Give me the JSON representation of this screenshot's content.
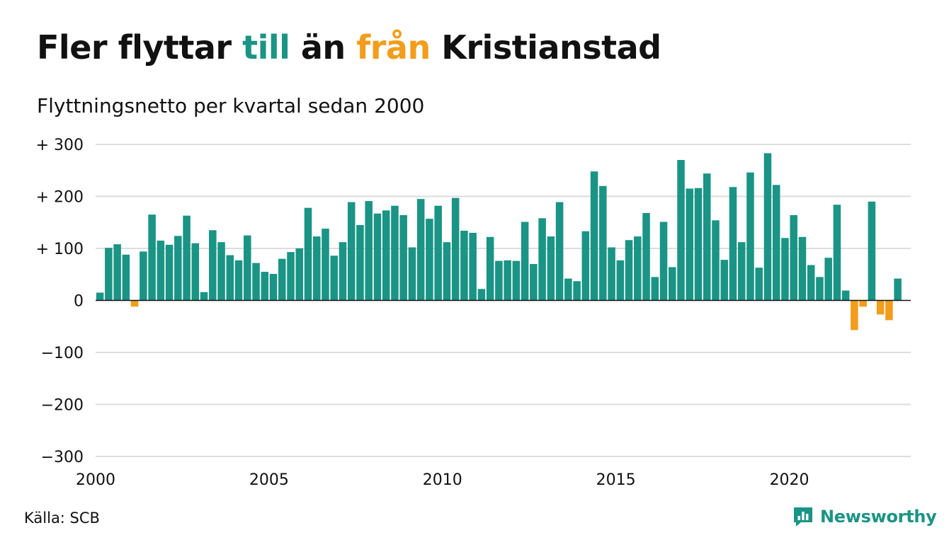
{
  "title": {
    "part1": "Fler flyttar ",
    "till": "till",
    "part2": " än ",
    "fran": "från",
    "part3": " Kristianstad"
  },
  "subtitle": "Flyttningsnetto per kvartal sedan 2000",
  "source": "Källa: SCB",
  "brand": {
    "name": "Newsworthy",
    "icon": "newsworthy-logo-icon"
  },
  "colors": {
    "positive": "#1a9485",
    "negative": "#f29d1b",
    "grid": "#dddddd",
    "zero_line": "#111111"
  },
  "chart_data": {
    "type": "bar",
    "title": "Fler flyttar till än från Kristianstad",
    "subtitle": "Flyttningsnetto per kvartal sedan 2000",
    "xlabel": "",
    "ylabel": "",
    "x_start": "2000 Q1",
    "x_unit": "quarter",
    "xlim": [
      2000,
      2023.5
    ],
    "ylim": [
      -300,
      300
    ],
    "yticks": [
      300,
      200,
      100,
      0,
      -100,
      -200,
      -300
    ],
    "ytick_labels": [
      "+ 300",
      "+ 200",
      "+ 100",
      "0",
      "−100",
      "−200",
      "−300"
    ],
    "xticks": [
      2000,
      2005,
      2010,
      2015,
      2020
    ],
    "xtick_labels": [
      "2000",
      "2005",
      "2010",
      "2015",
      "2020"
    ],
    "grid": "horizontal",
    "values": [
      15,
      101,
      108,
      88,
      -12,
      94,
      165,
      115,
      107,
      124,
      163,
      110,
      16,
      135,
      112,
      87,
      77,
      125,
      72,
      55,
      51,
      80,
      93,
      100,
      178,
      123,
      138,
      86,
      112,
      189,
      145,
      191,
      167,
      173,
      182,
      164,
      102,
      195,
      157,
      182,
      112,
      197,
      134,
      130,
      22,
      122,
      76,
      77,
      76,
      151,
      70,
      158,
      123,
      189,
      42,
      37,
      133,
      248,
      220,
      102,
      77,
      116,
      123,
      168,
      45,
      151,
      64,
      270,
      215,
      216,
      244,
      154,
      78,
      218,
      112,
      246,
      63,
      283,
      222,
      120,
      164,
      122,
      68,
      45,
      82,
      184,
      19,
      -57,
      -12,
      190,
      -27,
      -38,
      42
    ]
  }
}
